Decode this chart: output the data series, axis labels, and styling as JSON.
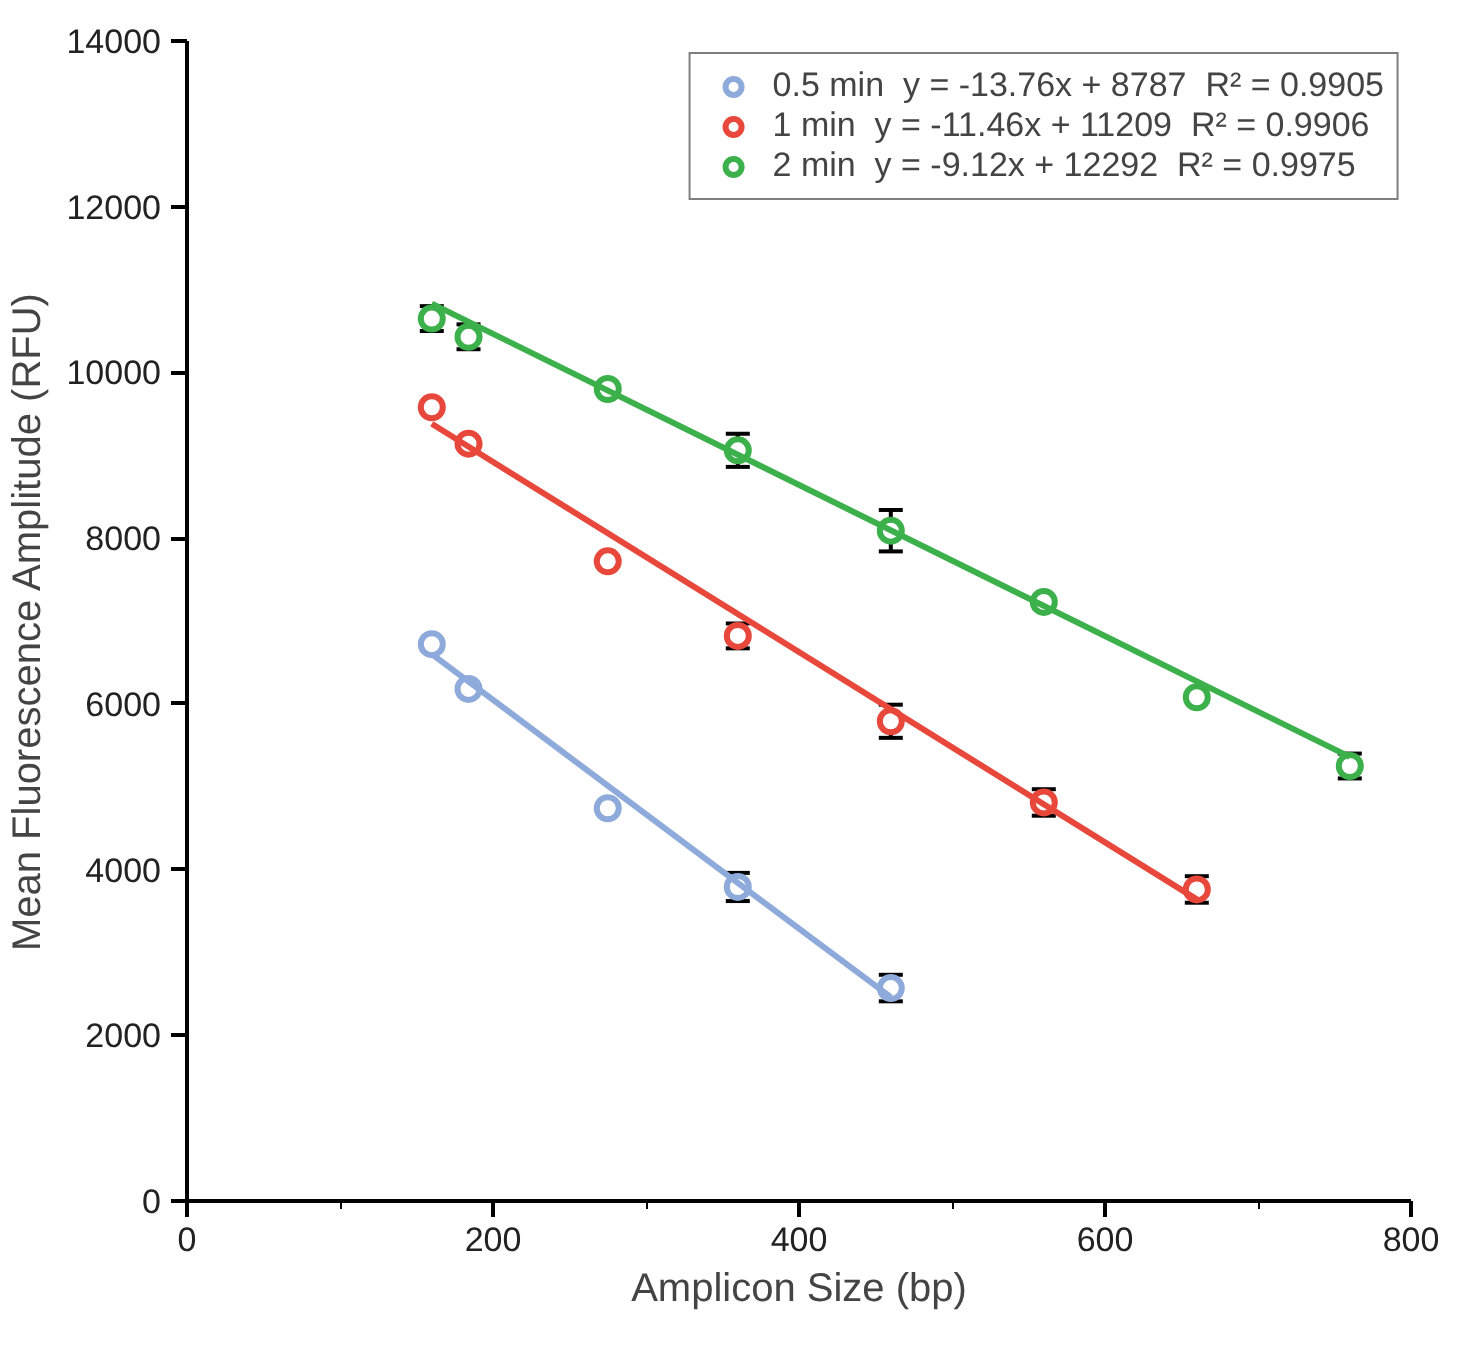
{
  "chart_data": {
    "type": "scatter",
    "xlabel": "Amplicon Size (bp)",
    "ylabel": "Mean Fluorescence Amplitude (RFU)",
    "xlim": [
      0,
      800
    ],
    "ylim": [
      0,
      14000
    ],
    "xticks": [
      0,
      200,
      400,
      600,
      800
    ],
    "yticks": [
      0,
      2000,
      4000,
      6000,
      8000,
      10000,
      12000,
      14000
    ],
    "grid": false,
    "legend": "top right",
    "marker": "circle",
    "series": [
      {
        "name": "0.5 min  y = -13.76x + 8787  R² = 0.9905",
        "color": "#8eaadb",
        "x": [
          160,
          184,
          275,
          360,
          460
        ],
        "values": [
          6720,
          6180,
          4740,
          3790,
          2570
        ],
        "errors": [
          null,
          null,
          null,
          170,
          160
        ]
      },
      {
        "name": "1 min  y = -11.46x + 11209  R² = 0.9906",
        "color": "#e8483b",
        "x": [
          160,
          184,
          275,
          360,
          460,
          560,
          660
        ],
        "values": [
          9580,
          9140,
          7720,
          6820,
          5790,
          4810,
          3760
        ],
        "errors": [
          null,
          null,
          null,
          150,
          200,
          160,
          160
        ]
      },
      {
        "name": "2 min  y = -9.12x + 12292  R² = 0.9975",
        "color": "#3cb04a",
        "x": [
          160,
          184,
          275,
          360,
          460,
          560,
          660,
          760
        ],
        "values": [
          10650,
          10430,
          9800,
          9060,
          8090,
          7230,
          6080,
          5250
        ],
        "errors": [
          150,
          150,
          null,
          200,
          250,
          null,
          null,
          150
        ]
      },
      {
        "type": "line",
        "marker": "none",
        "color": "#8eaadb",
        "x": [
          160,
          460
        ],
        "values": [
          6600,
          2460
        ]
      },
      {
        "type": "line",
        "marker": "none",
        "color": "#e8483b",
        "x": [
          160,
          660
        ],
        "values": [
          9380,
          3640
        ]
      },
      {
        "type": "line",
        "marker": "none",
        "color": "#3cb04a",
        "x": [
          160,
          760
        ],
        "values": [
          10830,
          5360
        ]
      }
    ]
  }
}
